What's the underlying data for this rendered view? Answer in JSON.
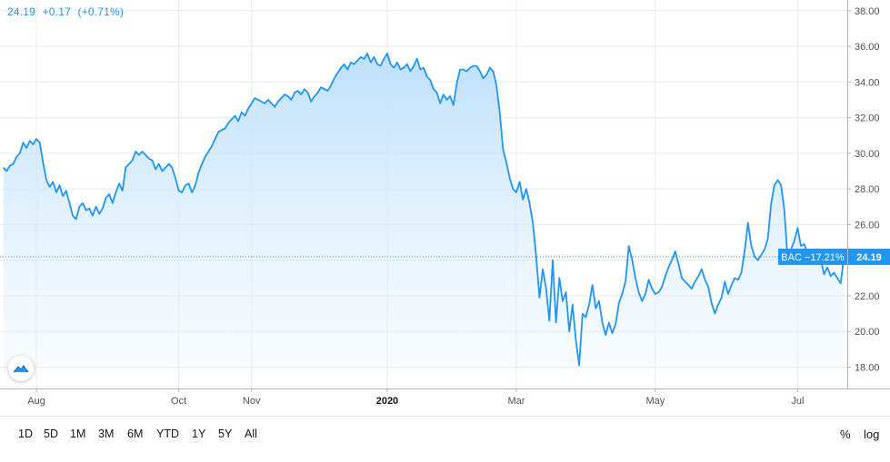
{
  "header": {
    "price": "24.19",
    "change": "+0.17",
    "change_pct": "(+0.71%)"
  },
  "price_label": {
    "symbol_change": "BAC −17.21%",
    "price": "24.19"
  },
  "range_buttons": [
    "1D",
    "5D",
    "1M",
    "3M",
    "6M",
    "YTD",
    "1Y",
    "5Y",
    "All"
  ],
  "scale_buttons": {
    "percent": "%",
    "log": "log"
  },
  "colors": {
    "line": "#2196f3",
    "fill_top": "#bbdefb",
    "grid": "#e8eaef",
    "axis_text": "#4c525e",
    "last_price_line": "#2196f3"
  },
  "icons": {
    "logo": "tradingview-logo-icon"
  },
  "chart_data": {
    "type": "area",
    "ylim": [
      16.8,
      38.6
    ],
    "y_ticks": [
      18,
      20,
      22,
      24,
      26,
      28,
      30,
      32,
      34,
      36,
      38
    ],
    "y_tick_labels": [
      "18.00",
      "20.00",
      "22.00",
      "24.00",
      "26.00",
      "28.00",
      "30.00",
      "32.00",
      "34.00",
      "36.00",
      "38.00"
    ],
    "x_ticks": [
      {
        "label": "Aug",
        "x": 10,
        "bold": false
      },
      {
        "label": "Oct",
        "x": 53,
        "bold": false
      },
      {
        "label": "Nov",
        "x": 75,
        "bold": false
      },
      {
        "label": "2020",
        "x": 116,
        "bold": true
      },
      {
        "label": "Mar",
        "x": 155,
        "bold": false
      },
      {
        "label": "May",
        "x": 197,
        "bold": false
      },
      {
        "label": "Jul",
        "x": 240,
        "bold": false
      }
    ],
    "x_range": [
      -1,
      255
    ],
    "grid": true,
    "last_price": 24.19,
    "series": [
      {
        "values": [
          [
            0,
            29.2
          ],
          [
            1,
            29.0
          ],
          [
            2,
            29.3
          ],
          [
            3,
            29.4
          ],
          [
            4,
            29.8
          ],
          [
            5,
            30.0
          ],
          [
            6,
            30.6
          ],
          [
            7,
            30.3
          ],
          [
            8,
            30.7
          ],
          [
            9,
            30.5
          ],
          [
            10,
            30.8
          ],
          [
            11,
            30.6
          ],
          [
            12,
            29.5
          ],
          [
            13,
            28.5
          ],
          [
            14,
            28.1
          ],
          [
            15,
            28.4
          ],
          [
            16,
            27.8
          ],
          [
            17,
            28.2
          ],
          [
            18,
            27.6
          ],
          [
            19,
            27.9
          ],
          [
            20,
            27.2
          ],
          [
            21,
            26.5
          ],
          [
            22,
            26.3
          ],
          [
            23,
            27.0
          ],
          [
            24,
            27.2
          ],
          [
            25,
            26.8
          ],
          [
            26,
            26.9
          ],
          [
            27,
            26.5
          ],
          [
            28,
            27.0
          ],
          [
            29,
            26.6
          ],
          [
            30,
            26.9
          ],
          [
            31,
            27.5
          ],
          [
            32,
            27.7
          ],
          [
            33,
            27.2
          ],
          [
            34,
            27.8
          ],
          [
            35,
            28.3
          ],
          [
            36,
            27.9
          ],
          [
            37,
            29.2
          ],
          [
            38,
            29.4
          ],
          [
            39,
            29.6
          ],
          [
            40,
            30.1
          ],
          [
            41,
            29.9
          ],
          [
            42,
            30.1
          ],
          [
            43,
            29.9
          ],
          [
            44,
            29.7
          ],
          [
            45,
            29.6
          ],
          [
            46,
            29.1
          ],
          [
            47,
            29.4
          ],
          [
            48,
            29.0
          ],
          [
            49,
            29.2
          ],
          [
            50,
            29.4
          ],
          [
            51,
            29.2
          ],
          [
            52,
            28.6
          ],
          [
            53,
            27.9
          ],
          [
            54,
            27.8
          ],
          [
            55,
            28.2
          ],
          [
            56,
            28.3
          ],
          [
            57,
            27.8
          ],
          [
            58,
            28.2
          ],
          [
            59,
            28.9
          ],
          [
            60,
            29.4
          ],
          [
            61,
            29.8
          ],
          [
            62,
            30.1
          ],
          [
            63,
            30.4
          ],
          [
            64,
            30.8
          ],
          [
            65,
            31.2
          ],
          [
            66,
            31.3
          ],
          [
            67,
            31.4
          ],
          [
            68,
            31.7
          ],
          [
            69,
            31.9
          ],
          [
            70,
            32.1
          ],
          [
            71,
            31.8
          ],
          [
            72,
            32.3
          ],
          [
            73,
            32.1
          ],
          [
            74,
            32.5
          ],
          [
            75,
            32.8
          ],
          [
            76,
            33.1
          ],
          [
            77,
            33.0
          ],
          [
            78,
            32.9
          ],
          [
            79,
            32.8
          ],
          [
            80,
            33.0
          ],
          [
            81,
            32.8
          ],
          [
            82,
            32.6
          ],
          [
            83,
            32.9
          ],
          [
            84,
            33.1
          ],
          [
            85,
            33.3
          ],
          [
            86,
            33.2
          ],
          [
            87,
            33.0
          ],
          [
            88,
            33.4
          ],
          [
            89,
            33.5
          ],
          [
            90,
            33.3
          ],
          [
            91,
            33.6
          ],
          [
            92,
            33.4
          ],
          [
            93,
            32.9
          ],
          [
            94,
            33.2
          ],
          [
            95,
            33.4
          ],
          [
            96,
            33.7
          ],
          [
            97,
            33.6
          ],
          [
            98,
            33.5
          ],
          [
            99,
            33.8
          ],
          [
            100,
            34.2
          ],
          [
            101,
            34.5
          ],
          [
            102,
            34.8
          ],
          [
            103,
            35.0
          ],
          [
            104,
            34.7
          ],
          [
            105,
            35.1
          ],
          [
            106,
            35.0
          ],
          [
            107,
            35.2
          ],
          [
            108,
            35.4
          ],
          [
            109,
            35.3
          ],
          [
            110,
            35.6
          ],
          [
            111,
            35.1
          ],
          [
            112,
            35.4
          ],
          [
            113,
            35.0
          ],
          [
            114,
            34.9
          ],
          [
            115,
            35.3
          ],
          [
            116,
            35.6
          ],
          [
            117,
            35.0
          ],
          [
            118,
            34.8
          ],
          [
            119,
            35.1
          ],
          [
            120,
            34.7
          ],
          [
            121,
            34.8
          ],
          [
            122,
            35.0
          ],
          [
            123,
            34.6
          ],
          [
            124,
            34.9
          ],
          [
            125,
            35.3
          ],
          [
            126,
            34.7
          ],
          [
            127,
            34.8
          ],
          [
            128,
            34.3
          ],
          [
            129,
            34.1
          ],
          [
            130,
            33.6
          ],
          [
            131,
            33.4
          ],
          [
            132,
            32.8
          ],
          [
            133,
            33.3
          ],
          [
            134,
            33.0
          ],
          [
            135,
            33.2
          ],
          [
            136,
            32.7
          ],
          [
            137,
            33.9
          ],
          [
            138,
            34.7
          ],
          [
            139,
            34.7
          ],
          [
            140,
            34.6
          ],
          [
            141,
            34.8
          ],
          [
            142,
            34.9
          ],
          [
            143,
            34.9
          ],
          [
            144,
            34.6
          ],
          [
            145,
            34.2
          ],
          [
            146,
            34.4
          ],
          [
            147,
            34.8
          ],
          [
            148,
            34.6
          ],
          [
            149,
            33.8
          ],
          [
            150,
            32.3
          ],
          [
            151,
            30.2
          ],
          [
            152,
            29.5
          ],
          [
            153,
            28.6
          ],
          [
            154,
            28.0
          ],
          [
            155,
            27.8
          ],
          [
            156,
            28.4
          ],
          [
            157,
            27.4
          ],
          [
            158,
            28.0
          ],
          [
            159,
            27.2
          ],
          [
            160,
            26.1
          ],
          [
            161,
            24.2
          ],
          [
            162,
            21.9
          ],
          [
            163,
            23.5
          ],
          [
            164,
            22.4
          ],
          [
            165,
            20.6
          ],
          [
            166,
            24.0
          ],
          [
            167,
            20.5
          ],
          [
            168,
            23.0
          ],
          [
            169,
            21.7
          ],
          [
            170,
            22.2
          ],
          [
            171,
            20.0
          ],
          [
            172,
            21.5
          ],
          [
            173,
            19.5
          ],
          [
            174,
            18.1
          ],
          [
            175,
            21.0
          ],
          [
            176,
            20.8
          ],
          [
            177,
            21.5
          ],
          [
            178,
            22.6
          ],
          [
            179,
            21.3
          ],
          [
            180,
            21.7
          ],
          [
            181,
            20.5
          ],
          [
            182,
            19.8
          ],
          [
            183,
            20.5
          ],
          [
            184,
            19.9
          ],
          [
            185,
            20.4
          ],
          [
            186,
            21.6
          ],
          [
            187,
            22.1
          ],
          [
            188,
            22.8
          ],
          [
            189,
            24.8
          ],
          [
            190,
            24.0
          ],
          [
            191,
            23.0
          ],
          [
            192,
            22.2
          ],
          [
            193,
            21.7
          ],
          [
            194,
            22.1
          ],
          [
            195,
            22.9
          ],
          [
            196,
            22.4
          ],
          [
            197,
            22.1
          ],
          [
            198,
            22.2
          ],
          [
            199,
            22.5
          ],
          [
            200,
            23.1
          ],
          [
            201,
            23.6
          ],
          [
            202,
            24.0
          ],
          [
            203,
            24.5
          ],
          [
            204,
            23.8
          ],
          [
            205,
            23.0
          ],
          [
            206,
            22.8
          ],
          [
            207,
            22.6
          ],
          [
            208,
            22.4
          ],
          [
            209,
            22.8
          ],
          [
            210,
            23.1
          ],
          [
            211,
            23.5
          ],
          [
            212,
            22.9
          ],
          [
            213,
            22.5
          ],
          [
            214,
            21.6
          ],
          [
            215,
            21.0
          ],
          [
            216,
            21.5
          ],
          [
            217,
            21.9
          ],
          [
            218,
            22.8
          ],
          [
            219,
            22.1
          ],
          [
            220,
            22.6
          ],
          [
            221,
            23.0
          ],
          [
            222,
            22.9
          ],
          [
            223,
            23.3
          ],
          [
            224,
            24.5
          ],
          [
            225,
            26.1
          ],
          [
            226,
            24.8
          ],
          [
            227,
            24.2
          ],
          [
            228,
            24.0
          ],
          [
            229,
            24.3
          ],
          [
            230,
            24.6
          ],
          [
            231,
            25.2
          ],
          [
            232,
            27.2
          ],
          [
            233,
            28.2
          ],
          [
            234,
            28.5
          ],
          [
            235,
            28.2
          ],
          [
            236,
            26.8
          ],
          [
            237,
            24.0
          ],
          [
            238,
            24.6
          ],
          [
            239,
            25.1
          ],
          [
            240,
            25.8
          ],
          [
            241,
            24.8
          ],
          [
            242,
            24.9
          ],
          [
            243,
            24.4
          ],
          [
            244,
            24.6
          ],
          [
            245,
            24.2
          ],
          [
            246,
            23.8
          ],
          [
            247,
            24.0
          ],
          [
            248,
            23.2
          ],
          [
            249,
            23.6
          ],
          [
            250,
            23.1
          ],
          [
            251,
            23.3
          ],
          [
            252,
            23.0
          ],
          [
            253,
            22.7
          ],
          [
            254,
            24.19
          ]
        ]
      }
    ]
  }
}
